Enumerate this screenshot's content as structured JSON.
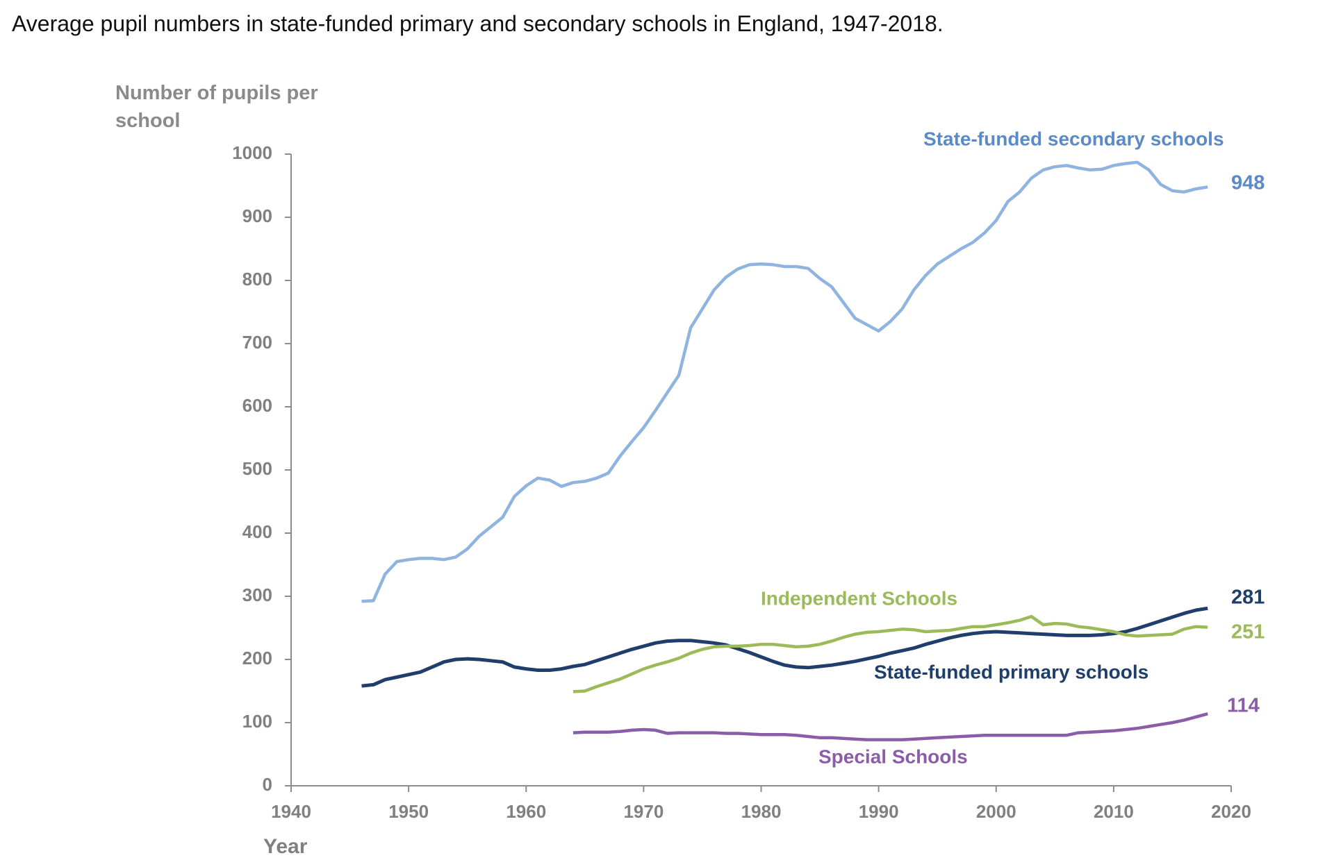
{
  "chart_data": {
    "type": "line",
    "title": "Average pupil numbers in state-funded primary and secondary schools in England, 1947-2018.",
    "y_label": "Number of pupils per school",
    "x_label": "Year",
    "xlim": [
      1940,
      2020
    ],
    "xticks": [
      1940,
      1950,
      1960,
      1970,
      1980,
      1990,
      2000,
      2010,
      2020
    ],
    "ylim": [
      0,
      1000
    ],
    "yticks": [
      0,
      100,
      200,
      300,
      400,
      500,
      600,
      700,
      800,
      900,
      1000
    ],
    "grid": false,
    "x": [
      1946,
      1947,
      1948,
      1949,
      1950,
      1951,
      1952,
      1953,
      1954,
      1955,
      1956,
      1957,
      1958,
      1959,
      1960,
      1961,
      1962,
      1963,
      1964,
      1965,
      1966,
      1967,
      1968,
      1969,
      1970,
      1971,
      1972,
      1973,
      1974,
      1975,
      1976,
      1977,
      1978,
      1979,
      1980,
      1981,
      1982,
      1983,
      1984,
      1985,
      1986,
      1987,
      1988,
      1989,
      1990,
      1991,
      1992,
      1993,
      1994,
      1995,
      1996,
      1997,
      1998,
      1999,
      2000,
      2001,
      2002,
      2003,
      2004,
      2005,
      2006,
      2007,
      2008,
      2009,
      2010,
      2011,
      2012,
      2013,
      2014,
      2015,
      2016,
      2017,
      2018
    ],
    "series": [
      {
        "name": "State-funded secondary schools",
        "color": "#8fb4e0",
        "label_color": "#5b8ac8",
        "values": [
          292,
          293,
          335,
          355,
          358,
          360,
          360,
          358,
          362,
          375,
          395,
          410,
          425,
          458,
          475,
          487,
          484,
          474,
          480,
          482,
          487,
          495,
          522,
          545,
          567,
          594,
          622,
          650,
          725,
          755,
          785,
          805,
          818,
          825,
          826,
          825,
          822,
          822,
          819,
          803,
          790,
          765,
          740,
          730,
          720,
          735,
          755,
          785,
          808,
          826,
          838,
          850,
          860,
          875,
          895,
          925,
          940,
          962,
          975,
          980,
          982,
          978,
          975,
          976,
          982,
          985,
          987,
          975,
          952,
          942,
          940,
          945,
          948
        ]
      },
      {
        "name": "State-funded primary schools",
        "color": "#1f3e6c",
        "label_color": "#1f3e6c",
        "values": [
          158,
          160,
          168,
          172,
          176,
          180,
          188,
          196,
          200,
          201,
          200,
          198,
          196,
          188,
          185,
          183,
          183,
          185,
          189,
          192,
          198,
          204,
          210,
          216,
          221,
          226,
          229,
          230,
          230,
          228,
          226,
          223,
          217,
          211,
          204,
          197,
          191,
          188,
          187,
          189,
          191,
          194,
          197,
          201,
          205,
          210,
          214,
          218,
          224,
          229,
          234,
          238,
          241,
          243,
          244,
          243,
          242,
          241,
          240,
          239,
          238,
          238,
          238,
          239,
          241,
          244,
          249,
          255,
          261,
          267,
          273,
          278,
          281
        ]
      },
      {
        "name": "Independent Schools",
        "color": "#9bbb59",
        "label_color": "#9bbb59",
        "values": [
          null,
          null,
          null,
          null,
          null,
          null,
          null,
          null,
          null,
          null,
          null,
          null,
          null,
          null,
          null,
          null,
          null,
          null,
          149,
          150,
          157,
          163,
          169,
          177,
          185,
          191,
          196,
          202,
          210,
          216,
          220,
          221,
          221,
          222,
          224,
          224,
          222,
          220,
          221,
          224,
          229,
          235,
          240,
          243,
          244,
          246,
          248,
          247,
          244,
          245,
          246,
          249,
          252,
          252,
          255,
          258,
          262,
          268,
          255,
          257,
          256,
          252,
          250,
          247,
          244,
          239,
          237,
          238,
          239,
          240,
          248,
          252,
          251
        ]
      },
      {
        "name": "Special Schools",
        "color": "#8b5ca8",
        "label_color": "#8b5ca8",
        "values": [
          null,
          null,
          null,
          null,
          null,
          null,
          null,
          null,
          null,
          null,
          null,
          null,
          null,
          null,
          null,
          null,
          null,
          null,
          84,
          85,
          85,
          85,
          86,
          88,
          89,
          88,
          83,
          84,
          84,
          84,
          84,
          83,
          83,
          82,
          81,
          81,
          81,
          80,
          78,
          76,
          76,
          75,
          74,
          73,
          73,
          73,
          73,
          74,
          75,
          76,
          77,
          78,
          79,
          80,
          80,
          80,
          80,
          80,
          80,
          80,
          80,
          84,
          85,
          86,
          87,
          89,
          91,
          94,
          97,
          100,
          104,
          109,
          114
        ]
      }
    ]
  }
}
